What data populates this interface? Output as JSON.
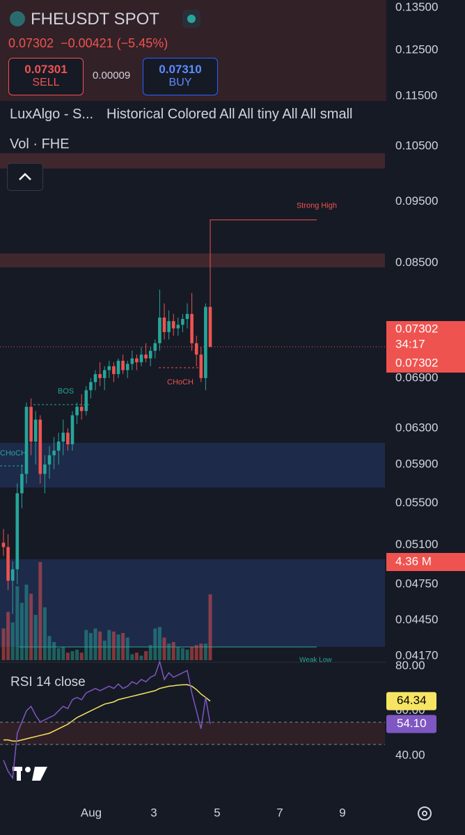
{
  "header": {
    "symbol": "FHEUSDT SPOT",
    "price": "0.07302",
    "change": "−0.00421 (−5.45%)",
    "sell_price": "0.07301",
    "sell": "SELL",
    "spread": "0.00009",
    "buy_price": "0.07310",
    "buy": "BUY"
  },
  "indicators": [
    "LuxAlgo - S...",
    "Historical Colored All All tiny All All small",
    "Vol · FHE"
  ],
  "chart_data": {
    "type": "candlestick",
    "log": true,
    "open": [
      0.0512,
      0.0508,
      0.0478,
      0.0488,
      0.056,
      0.058,
      0.0655,
      0.0615,
      0.064,
      0.058,
      0.059,
      0.06,
      0.0605,
      0.0615,
      0.0625,
      0.0612,
      0.0645,
      0.0655,
      0.065,
      0.0675,
      0.0685,
      0.0695,
      0.069,
      0.07,
      0.0705,
      0.0695,
      0.0712,
      0.07,
      0.0708,
      0.0715,
      0.071,
      0.072,
      0.0715,
      0.0725,
      0.0735,
      0.077,
      0.075,
      0.0765,
      0.0755,
      0.076,
      0.0768,
      0.0775,
      0.0735,
      0.072,
      0.069,
      0.0785
    ],
    "high": [
      0.0525,
      0.052,
      0.0495,
      0.057,
      0.059,
      0.066,
      0.0665,
      0.065,
      0.0645,
      0.06,
      0.061,
      0.062,
      0.0625,
      0.064,
      0.063,
      0.065,
      0.066,
      0.067,
      0.068,
      0.069,
      0.07,
      0.071,
      0.0705,
      0.0712,
      0.071,
      0.0715,
      0.072,
      0.0712,
      0.0725,
      0.072,
      0.073,
      0.0735,
      0.073,
      0.074,
      0.081,
      0.079,
      0.078,
      0.0775,
      0.077,
      0.0775,
      0.079,
      0.0805,
      0.0745,
      0.073,
      0.079,
      0.0919
    ],
    "low": [
      0.05,
      0.047,
      0.045,
      0.0475,
      0.0545,
      0.057,
      0.06,
      0.059,
      0.057,
      0.056,
      0.0575,
      0.0585,
      0.059,
      0.06,
      0.0605,
      0.0605,
      0.0635,
      0.064,
      0.0645,
      0.0665,
      0.0675,
      0.068,
      0.0675,
      0.069,
      0.0685,
      0.069,
      0.0695,
      0.069,
      0.07,
      0.07,
      0.0705,
      0.071,
      0.0705,
      0.0715,
      0.0725,
      0.074,
      0.074,
      0.0745,
      0.0745,
      0.075,
      0.0755,
      0.0725,
      0.0705,
      0.0685,
      0.0675,
      0.073
    ],
    "close": [
      0.0508,
      0.0478,
      0.0488,
      0.056,
      0.058,
      0.0655,
      0.0615,
      0.064,
      0.058,
      0.059,
      0.06,
      0.0605,
      0.0615,
      0.0625,
      0.0612,
      0.0645,
      0.0655,
      0.065,
      0.0675,
      0.0685,
      0.0695,
      0.069,
      0.07,
      0.0705,
      0.0695,
      0.0712,
      0.07,
      0.0708,
      0.0715,
      0.071,
      0.072,
      0.0715,
      0.0725,
      0.0735,
      0.077,
      0.075,
      0.0765,
      0.0755,
      0.076,
      0.0768,
      0.0775,
      0.0735,
      0.072,
      0.069,
      0.0785,
      0.073
    ],
    "up_color": "#26a69a",
    "down_color": "#ef5350",
    "ylim": [
      0.0417,
      0.135
    ],
    "yticks": [
      {
        "value": 0.135,
        "label": "0.13500"
      },
      {
        "value": 0.125,
        "label": "0.12500"
      },
      {
        "value": 0.115,
        "label": "0.11500"
      },
      {
        "value": 0.105,
        "label": "0.10500"
      },
      {
        "value": 0.095,
        "label": "0.09500"
      },
      {
        "value": 0.085,
        "label": "0.08500"
      },
      {
        "value": 0.069,
        "label": "0.06900"
      },
      {
        "value": 0.063,
        "label": "0.06300"
      },
      {
        "value": 0.059,
        "label": "0.05900"
      },
      {
        "value": 0.055,
        "label": "0.05500"
      },
      {
        "value": 0.051,
        "label": "0.05100"
      },
      {
        "value": 0.0475,
        "label": "0.04750"
      },
      {
        "value": 0.0445,
        "label": "0.04450"
      },
      {
        "value": 0.0417,
        "label": "0.04170"
      }
    ],
    "last_price": {
      "value": 0.07302,
      "label": "0.07302"
    },
    "countdown": "34:17",
    "mark_price": {
      "value": 0.07302,
      "label": "0.07302"
    },
    "strong_high": {
      "value": 0.0919,
      "label": "Strong High"
    },
    "annotations": [
      "BOS",
      "CHoCH",
      "CHoCH",
      "Weak Low"
    ],
    "volume": {
      "values": [
        2.1,
        3.2,
        2.5,
        4.9,
        3.8,
        5.0,
        4.4,
        3.0,
        6.5,
        3.5,
        1.6,
        1.2,
        0.8,
        0.9,
        0.5,
        0.6,
        0.7,
        0.5,
        2.0,
        1.8,
        2.1,
        1.9,
        1.3,
        2.0,
        1.9,
        1.7,
        1.8,
        1.5,
        0.4,
        0.5,
        0.3,
        0.6,
        1.0,
        2.1,
        2.2,
        1.5,
        1.1,
        1.2,
        0.9,
        0.8,
        0.7,
        0.9,
        1.0,
        1.1,
        1.1,
        4.36
      ],
      "last_label": "4.36 M"
    }
  },
  "rsi": {
    "title": "RSI 14 close",
    "ylim": [
      26,
      82
    ],
    "yticks": [
      {
        "value": 80,
        "label": "80.00"
      },
      {
        "value": 60,
        "label": "60.00"
      },
      {
        "value": 40,
        "label": "40.00"
      }
    ],
    "values": [
      38,
      33,
      30,
      50,
      55,
      60,
      62,
      58,
      55,
      56,
      57,
      58,
      60,
      62,
      61,
      65,
      66,
      65,
      68,
      69,
      70,
      69,
      70,
      71,
      70,
      72,
      70,
      71,
      73,
      72,
      74,
      73,
      75,
      76,
      82,
      74,
      77,
      75,
      76,
      77,
      78,
      68,
      60,
      52,
      66,
      54.1
    ],
    "ma": [
      47,
      47,
      46.5,
      46.5,
      47,
      47.5,
      48,
      48.5,
      49,
      49.5,
      50,
      51,
      52,
      53,
      54,
      55.5,
      57,
      58,
      59,
      60,
      61,
      62,
      63,
      63.5,
      64,
      65,
      65.5,
      66,
      66.5,
      67,
      67.5,
      68,
      68.5,
      69,
      70,
      70.5,
      71,
      71.2,
      71.5,
      71.6,
      71.7,
      71,
      69.5,
      67.5,
      66,
      64.34
    ],
    "value_label": "54.10",
    "ma_label": "64.34",
    "color": "#7e57c2",
    "ma_color": "#f7e463"
  },
  "x_axis": [
    "Aug",
    "3",
    "5",
    "7",
    "9"
  ]
}
